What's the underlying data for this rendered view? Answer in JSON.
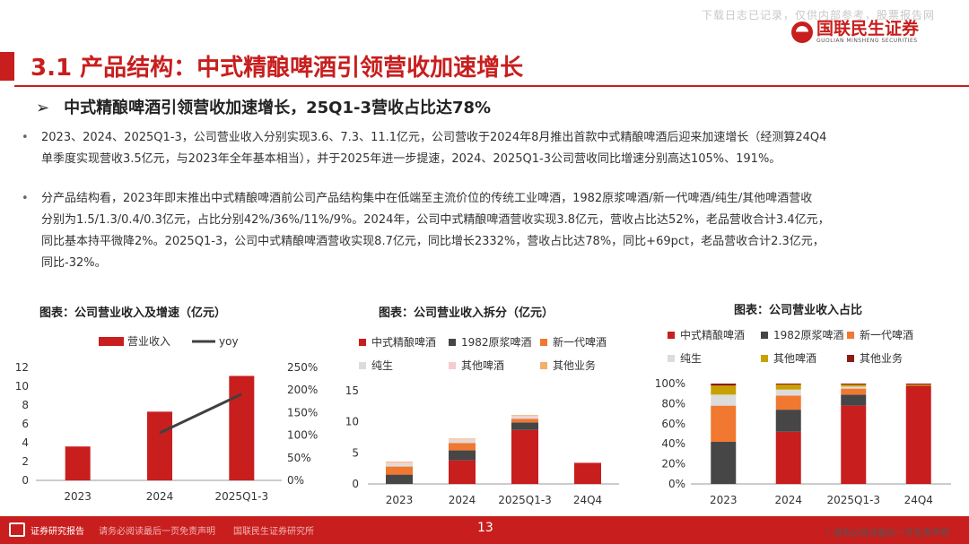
{
  "header": {
    "watermark": "下载日志已记录，仅供内部参考，股票报告网",
    "brand_cn": "国联民生证券",
    "brand_en": "GUOLIAN MINSHENG SECURITIES"
  },
  "page_title": "3.1 产品结构：中式精酿啤酒引领营收加速增长",
  "subheading": {
    "arrow": "➢",
    "text": "中式精酿啤酒引领营收加速增长，25Q1-3营收占比达78%"
  },
  "paragraphs": [
    {
      "bullet": "•",
      "lines": [
        "2023、2024、2025Q1-3，公司营业收入分别实现3.6、7.3、11.1亿元，公司营收于2024年8月推出首款中式精酿啤酒后迎来加速增长（经测算24Q4",
        "单季度实现营收3.5亿元，与2023年全年基本相当），并于2025年进一步提速，2024、2025Q1-3公司营收同比增速分别高达105%、191%。"
      ]
    },
    {
      "bullet": "•",
      "lines": [
        "分产品结构看，2023年即末推出中式精酿啤酒前公司产品结构集中在低端至主流价位的传统工业啤酒，1982原浆啤酒/新一代啤酒/纯生/其他啤酒营收",
        "分别为1.5/1.3/0.4/0.3亿元，占比分别42%/36%/11%/9%。2024年，公司中式精酿啤酒营收实现3.8亿元，营收占比达52%，老品营收合计3.4亿元，",
        "同比基本持平微降2%。2025Q1-3，公司中式精酿啤酒营收实现8.7亿元，同比增长2332%，营收占比达78%，同比+69pct，老品营收合计2.3亿元，",
        "同比-32%。"
      ]
    }
  ],
  "colors": {
    "brand_red": "#c81e1e",
    "craft": "#c81e1e",
    "b1982": "#464646",
    "new": "#f07830",
    "pure": "#dcdcdc",
    "other_beer": "#f5cccc",
    "other_biz": "#f2b06b",
    "other_beer_ratio": "#c8a000",
    "other_biz_ratio": "#8c1c14",
    "yoy": "#404040"
  },
  "chart_data": [
    {
      "type": "bar",
      "title": "图表：公司营业收入及增速（亿元）",
      "legend": [
        "营业收入",
        "yoy"
      ],
      "categories": [
        "2023",
        "2024",
        "2025Q1-3"
      ],
      "series": [
        {
          "name": "营业收入",
          "values": [
            3.6,
            7.3,
            11.1
          ],
          "axis": "left"
        },
        {
          "name": "yoy",
          "values": [
            null,
            105,
            191
          ],
          "axis": "right",
          "kind": "line"
        }
      ],
      "ylim": [
        0,
        12
      ],
      "yticks": [
        "0",
        "2",
        "4",
        "6",
        "8",
        "10",
        "12"
      ],
      "y2lim": [
        0,
        250
      ],
      "y2ticks": [
        "0%",
        "50%",
        "100%",
        "150%",
        "200%",
        "250%"
      ]
    },
    {
      "type": "bar",
      "stacked": true,
      "title": "图表：公司营业收入拆分（亿元）",
      "legend": [
        "中式精酿啤酒",
        "1982原浆啤酒",
        "新一代啤酒",
        "纯生",
        "其他啤酒",
        "其他业务"
      ],
      "categories": [
        "2023",
        "2024",
        "2025Q1-3",
        "24Q4"
      ],
      "series": [
        {
          "name": "中式精酿啤酒",
          "values": [
            0,
            3.8,
            8.7,
            3.4
          ]
        },
        {
          "name": "1982原浆啤酒",
          "values": [
            1.5,
            1.6,
            1.2,
            0
          ]
        },
        {
          "name": "新一代啤酒",
          "values": [
            1.3,
            1.2,
            0.6,
            0
          ]
        },
        {
          "name": "纯生",
          "values": [
            0.4,
            0.4,
            0.3,
            0
          ]
        },
        {
          "name": "其他啤酒",
          "values": [
            0.3,
            0.2,
            0.2,
            0
          ]
        },
        {
          "name": "其他业务",
          "values": [
            0.1,
            0.1,
            0.1,
            0
          ]
        }
      ],
      "ylim": [
        0,
        15
      ],
      "yticks": [
        "0",
        "5",
        "10",
        "15"
      ]
    },
    {
      "type": "bar",
      "stacked": true,
      "title": "图表：公司营业收入占比",
      "legend": [
        "中式精酿啤酒",
        "1982原浆啤酒",
        "新一代啤酒",
        "纯生",
        "其他啤酒",
        "其他业务"
      ],
      "categories": [
        "2023",
        "2024",
        "2025Q1-3",
        "24Q4"
      ],
      "series": [
        {
          "name": "中式精酿啤酒",
          "values": [
            0,
            52,
            78,
            98
          ]
        },
        {
          "name": "1982原浆啤酒",
          "values": [
            42,
            22,
            11,
            0
          ]
        },
        {
          "name": "新一代啤酒",
          "values": [
            36,
            14,
            6,
            0
          ]
        },
        {
          "name": "纯生",
          "values": [
            11,
            6,
            2,
            0
          ]
        },
        {
          "name": "其他啤酒",
          "values": [
            9,
            5,
            2,
            1
          ]
        },
        {
          "name": "其他业务",
          "values": [
            2,
            1,
            1,
            1
          ]
        }
      ],
      "ylim": [
        0,
        100
      ],
      "yticks": [
        "0%",
        "20%",
        "40%",
        "60%",
        "80%",
        "100%"
      ]
    }
  ],
  "footer": {
    "left": "证券研究报告",
    "middle": "请务必阅读最后一页免责声明　　国联民生证券研究所",
    "page": "13",
    "note": "* 请务必阅读最后一页免责声明"
  }
}
